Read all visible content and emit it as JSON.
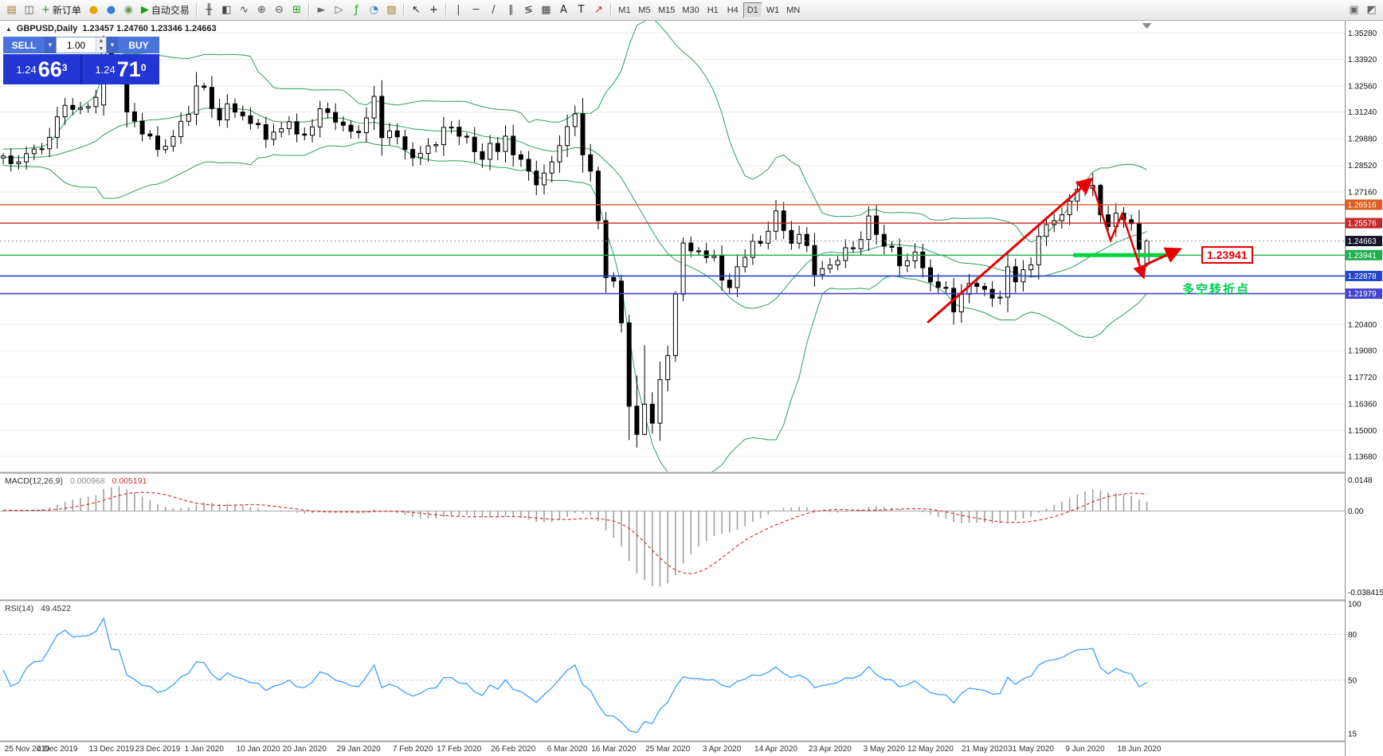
{
  "toolbar": {
    "items": [
      {
        "t": "i",
        "name": "new-chart-button",
        "icon": "new-chart-icon",
        "g": "▤",
        "c": "#9a7b2f"
      },
      {
        "t": "i",
        "name": "profiles-button",
        "icon": "profiles-icon",
        "g": "◫",
        "c": "#5a5a5a"
      },
      {
        "t": "b",
        "name": "new-order-button",
        "icon": "new-order-icon",
        "g": "+",
        "c": "#18a018",
        "label": "新订单"
      },
      {
        "t": "i",
        "name": "market-watch-button",
        "icon": "market-watch-icon",
        "g": "●",
        "c": "#e0a800"
      },
      {
        "t": "i",
        "name": "data-window-button",
        "icon": "data-window-icon",
        "g": "●",
        "c": "#3a7bd5"
      },
      {
        "t": "i",
        "name": "navigator-button",
        "icon": "navigator-icon",
        "g": "◉",
        "c": "#6a9a4a"
      },
      {
        "t": "b",
        "name": "auto-trading-button",
        "icon": "auto-trading-icon",
        "g": "▶",
        "c": "#18a018",
        "label": "自动交易"
      },
      {
        "t": "s"
      },
      {
        "t": "i",
        "name": "bar-chart-type-button",
        "icon": "bar-chart-icon",
        "g": "╫",
        "c": "#444444"
      },
      {
        "t": "i",
        "name": "candlestick-type-button",
        "icon": "candlestick-icon",
        "g": "◧",
        "c": "#444444"
      },
      {
        "t": "i",
        "name": "line-chart-type-button",
        "icon": "line-chart-icon",
        "g": "∿",
        "c": "#444444"
      },
      {
        "t": "i",
        "name": "zoom-in-button",
        "icon": "zoom-in-icon",
        "g": "⊕",
        "c": "#555555"
      },
      {
        "t": "i",
        "name": "zoom-out-button",
        "icon": "zoom-out-icon",
        "g": "⊖",
        "c": "#555555"
      },
      {
        "t": "i",
        "name": "tile-windows-button",
        "icon": "tile-windows-icon",
        "g": "⊞",
        "c": "#18a018"
      },
      {
        "t": "s"
      },
      {
        "t": "i",
        "name": "auto-scroll-button",
        "icon": "auto-scroll-icon",
        "g": "►",
        "c": "#666666"
      },
      {
        "t": "i",
        "name": "chart-shift-button",
        "icon": "chart-shift-icon",
        "g": "▷",
        "c": "#666666"
      },
      {
        "t": "i",
        "name": "indicators-button",
        "icon": "indicators-icon",
        "g": "ƒ",
        "c": "#18a018"
      },
      {
        "t": "i",
        "name": "periods-button",
        "icon": "clock-icon",
        "g": "◔",
        "c": "#3a7bd5"
      },
      {
        "t": "i",
        "name": "templates-button",
        "icon": "templates-icon",
        "g": "▨",
        "c": "#9a7b2f"
      },
      {
        "t": "s"
      },
      {
        "t": "i",
        "name": "cursor-button",
        "icon": "cursor-icon",
        "g": "↖",
        "c": "#222222"
      },
      {
        "t": "i",
        "name": "crosshair-button",
        "icon": "crosshair-icon",
        "g": "+",
        "c": "#222222"
      },
      {
        "t": "s"
      },
      {
        "t": "i",
        "name": "vertical-line-button",
        "icon": "vertical-line-icon",
        "g": "|",
        "c": "#444444"
      },
      {
        "t": "i",
        "name": "horizontal-line-button",
        "icon": "horizontal-line-icon",
        "g": "─",
        "c": "#444444"
      },
      {
        "t": "i",
        "name": "trendline-button",
        "icon": "trendline-icon",
        "g": "/",
        "c": "#444444"
      },
      {
        "t": "i",
        "name": "channel-button",
        "icon": "channel-icon",
        "g": "∥",
        "c": "#444444"
      },
      {
        "t": "i",
        "name": "fibonacci-button",
        "icon": "fibonacci-icon",
        "g": "≶",
        "c": "#444444"
      },
      {
        "t": "i",
        "name": "shapes-button",
        "icon": "shapes-icon",
        "g": "▦",
        "c": "#444444"
      },
      {
        "t": "i",
        "name": "text-button",
        "icon": "text-icon",
        "g": "A",
        "c": "#222222"
      },
      {
        "t": "i",
        "name": "text-label-button",
        "icon": "text-label-icon",
        "g": "T",
        "c": "#222222"
      },
      {
        "t": "i",
        "name": "arrows-tool-button",
        "icon": "arrow-tool-icon",
        "g": "↗",
        "c": "#c03030"
      },
      {
        "t": "s"
      }
    ],
    "timeframes": {
      "items": [
        "M1",
        "M5",
        "M15",
        "M30",
        "H1",
        "H4",
        "D1",
        "W1",
        "MN"
      ],
      "active": "D1"
    },
    "right_items": [
      {
        "name": "chart-settings-button",
        "icon": "chart-settings-icon",
        "g": "▣",
        "c": "#666666"
      },
      {
        "name": "window-layout-button",
        "icon": "window-layout-icon",
        "g": "◩",
        "c": "#666666"
      }
    ]
  },
  "symbol_header": {
    "collapse_glyph": "▲",
    "title": "GBPUSD,Daily",
    "ohlc": "1.23457 1.24760 1.23346 1.24663"
  },
  "trade_panel": {
    "sell": "SELL",
    "buy": "BUY",
    "volume": "1.00",
    "caret": "▼",
    "spin_up": "▲",
    "spin_down": "▼",
    "sell_small": "1.24",
    "sell_big": "66",
    "sell_sup": "3",
    "buy_small": "1.24",
    "buy_big": "71",
    "buy_sup": "0"
  },
  "indicator_labels": {
    "macd_name": "MACD(12,26,9)",
    "macd_v1": "0.000968",
    "macd_v2": "0.005191",
    "rsi_name": "RSI(14)",
    "rsi_value": "49.4522"
  },
  "chart_data": {
    "type": "candlestick",
    "title": "GBPUSD Daily with Bollinger Bands(20,2), MACD(12,26,9), RSI(14)",
    "colors": {
      "up": "#ffffff",
      "down": "#000000",
      "wick": "#000000",
      "bollinger": "#2e9e5b",
      "macd_hist": "#9a9a9a",
      "macd_signal": "#e03131",
      "rsi": "#3aa0ff",
      "annotation": "#e60000",
      "grid": "#ececec"
    },
    "main_axis": {
      "ticks": [
        1.3528,
        1.3392,
        1.3256,
        1.3124,
        1.2988,
        1.2852,
        1.2716,
        1.204,
        1.1908,
        1.1772,
        1.1636,
        1.15,
        1.1368
      ],
      "tick_labels": [
        "1.35280",
        "1.33920",
        "1.32560",
        "1.31240",
        "1.29880",
        "1.28520",
        "1.27160",
        "1.20400",
        "1.19080",
        "1.17720",
        "1.16360",
        "1.15000",
        "1.13680"
      ]
    },
    "levels": [
      {
        "price": 1.26516,
        "label": "1.26516",
        "color": "#e05c20",
        "width": 1.4
      },
      {
        "price": 1.25576,
        "label": "1.25576",
        "color": "#c62828",
        "width": 1.4
      },
      {
        "price": 1.23941,
        "label": "1.23941",
        "color": "#1fae4f",
        "width": 1.4
      },
      {
        "price": 1.22878,
        "label": "1.22878",
        "color": "#2546cc",
        "width": 1.6
      },
      {
        "price": 1.21979,
        "label": "1.21979",
        "color": "#4343cf",
        "width": 1.6
      }
    ],
    "current_price": {
      "price": 1.24663,
      "label": "1.24663",
      "badge": "#15152c",
      "line_color": "#999999"
    },
    "macd_axis": {
      "top_v": 0.0148,
      "bottom_v": -0.038415,
      "labels": [
        "0.0148",
        "0.00",
        "-0.038415"
      ]
    },
    "rsi_axis": {
      "values": [
        100,
        80,
        50,
        15
      ],
      "labels": [
        "100",
        "80",
        "50",
        "15"
      ],
      "dashed_levels": [
        80,
        50
      ]
    },
    "x_ticks": [
      {
        "i": 0,
        "label": "25 Nov 2019"
      },
      {
        "i": 7,
        "label": "4 Dec 2019"
      },
      {
        "i": 14,
        "label": "13 Dec 2019"
      },
      {
        "i": 20,
        "label": "23 Dec 2019"
      },
      {
        "i": 26,
        "label": "1 Jan 2020"
      },
      {
        "i": 33,
        "label": "10 Jan 2020"
      },
      {
        "i": 39,
        "label": "20 Jan 2020"
      },
      {
        "i": 46,
        "label": "29 Jan 2020"
      },
      {
        "i": 53,
        "label": "7 Feb 2020"
      },
      {
        "i": 59,
        "label": "17 Feb 2020"
      },
      {
        "i": 66,
        "label": "26 Feb 2020"
      },
      {
        "i": 73,
        "label": "6 Mar 2020"
      },
      {
        "i": 79,
        "label": "16 Mar 2020"
      },
      {
        "i": 86,
        "label": "25 Mar 2020"
      },
      {
        "i": 93,
        "label": "3 Apr 2020"
      },
      {
        "i": 100,
        "label": "14 Apr 2020"
      },
      {
        "i": 107,
        "label": "23 Apr 2020"
      },
      {
        "i": 114,
        "label": "3 May 2020"
      },
      {
        "i": 120,
        "label": "12 May 2020"
      },
      {
        "i": 127,
        "label": "21 May 2020"
      },
      {
        "i": 133,
        "label": "31 May 2020"
      },
      {
        "i": 140,
        "label": "9 Jun 2020"
      },
      {
        "i": 147,
        "label": "18 Jun 2020"
      }
    ],
    "candles": {
      "warmup": [
        1.284,
        1.2855,
        1.287,
        1.2885,
        1.289,
        1.2875,
        1.286,
        1.288,
        1.29,
        1.292,
        1.291,
        1.289,
        1.2885,
        1.2895,
        1.2905,
        1.2915,
        1.2925,
        1.2935,
        1.292,
        1.29,
        1.288,
        1.286,
        1.285,
        1.2865,
        1.288,
        1.2895,
        1.2905,
        1.2895,
        1.2885,
        1.289
      ],
      "closes": [
        1.29,
        1.2861,
        1.287,
        1.2912,
        1.2935,
        1.2937,
        1.2995,
        1.31,
        1.3158,
        1.3138,
        1.3145,
        1.3152,
        1.3199,
        1.3503,
        1.3333,
        1.3327,
        1.3125,
        1.3078,
        1.3012,
        1.3002,
        1.2933,
        1.295,
        1.2999,
        1.3077,
        1.3113,
        1.3257,
        1.325,
        1.3142,
        1.3084,
        1.3166,
        1.3124,
        1.3105,
        1.3066,
        1.306,
        1.2985,
        1.3022,
        1.3039,
        1.3075,
        1.3012,
        1.3006,
        1.3048,
        1.3141,
        1.3122,
        1.3073,
        1.3057,
        1.3026,
        1.3019,
        1.3094,
        1.3204,
        1.2994,
        1.3028,
        1.2998,
        1.2933,
        1.2891,
        1.2913,
        1.2952,
        1.2958,
        1.3046,
        1.3047,
        1.3001,
        1.2996,
        1.2922,
        1.2883,
        1.2964,
        1.2923,
        1.3001,
        1.2906,
        1.2883,
        1.2823,
        1.2753,
        1.2813,
        1.287,
        1.2953,
        1.305,
        1.3115,
        1.2906,
        1.2823,
        1.257,
        1.228,
        1.2262,
        1.2049,
        1.1624,
        1.148,
        1.1634,
        1.1537,
        1.1759,
        1.1882,
        1.2195,
        1.2456,
        1.2416,
        1.2416,
        1.2382,
        1.239,
        1.2267,
        1.2229,
        1.2335,
        1.2383,
        1.2465,
        1.2455,
        1.2516,
        1.262,
        1.252,
        1.2455,
        1.25,
        1.2443,
        1.2295,
        1.2325,
        1.2344,
        1.2367,
        1.2432,
        1.2427,
        1.2474,
        1.2594,
        1.25,
        1.244,
        1.2434,
        1.234,
        1.2365,
        1.241,
        1.233,
        1.2258,
        1.223,
        1.2225,
        1.2105,
        1.2195,
        1.225,
        1.2235,
        1.222,
        1.2175,
        1.218,
        1.2335,
        1.2258,
        1.232,
        1.2345,
        1.249,
        1.255,
        1.257,
        1.26,
        1.267,
        1.273,
        1.2735,
        1.275,
        1.26,
        1.254,
        1.2608,
        1.2575,
        1.2555,
        1.2424,
        1.24663
      ],
      "overrides": {
        "13": [
          1.316,
          1.3514,
          1.3106,
          1.3503
        ],
        "14": [
          1.346,
          1.347,
          1.3282,
          1.3333
        ],
        "77": [
          1.2823,
          1.2845,
          1.2526,
          1.257
        ],
        "78": [
          1.257,
          1.2613,
          1.2203,
          1.228
        ],
        "80": [
          1.2262,
          1.2295,
          1.2,
          1.2049
        ],
        "81": [
          1.2049,
          1.209,
          1.1451,
          1.1624
        ],
        "82": [
          1.1624,
          1.178,
          1.1412,
          1.148
        ],
        "83": [
          1.148,
          1.1935,
          1.1475,
          1.1634
        ],
        "87": [
          1.1882,
          1.221,
          1.185,
          1.2195
        ],
        "88": [
          1.2195,
          1.2485,
          1.216,
          1.2456
        ],
        "141": [
          1.2735,
          1.2813,
          1.2695,
          1.275
        ],
        "142": [
          1.275,
          1.2758,
          1.256,
          1.26
        ],
        "148": [
          1.23457,
          1.2476,
          1.23346,
          1.24663
        ]
      }
    },
    "annotations": {
      "trend_arrow_up": {
        "from": [
          119.6,
          1.205
        ],
        "to": [
          140.6,
          1.2775
        ],
        "color": "#e60000",
        "width": 3
      },
      "zigzag": {
        "points": [
          [
            141.0,
            1.275
          ],
          [
            143.3,
            1.247
          ],
          [
            144.8,
            1.2605
          ],
          [
            147.5,
            1.229
          ]
        ],
        "color": "#e60000",
        "width": 2.5
      },
      "small_arrow": {
        "from": [
          147.8,
          1.2345
        ],
        "to": [
          152.0,
          1.242
        ],
        "color": "#e60000",
        "width": 3
      },
      "support_segment": {
        "price": 1.23941,
        "i_from": 138.5,
        "i_to": 151.3,
        "color": "#00d23c",
        "width": 5
      },
      "price_tag": {
        "text": "1.23941"
      },
      "cn_note": {
        "text": "多空转折点"
      }
    }
  }
}
